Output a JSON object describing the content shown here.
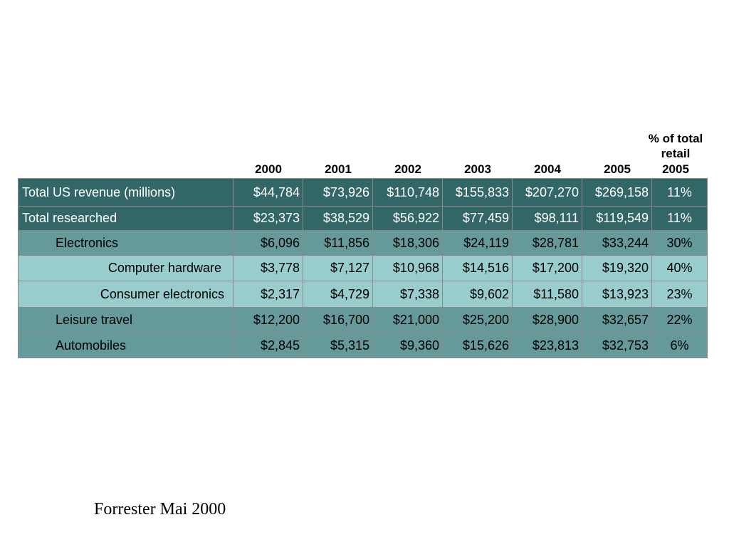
{
  "headers": {
    "years": [
      "2000",
      "2001",
      "2002",
      "2003",
      "2004",
      "2005"
    ],
    "pct_line1": "% of total",
    "pct_line2": "retail",
    "pct_line3": "2005"
  },
  "rows": [
    {
      "label": "Total US revenue (millions)",
      "values": [
        "$44,784",
        "$73,926",
        "$110,748",
        "$155,833",
        "$207,270",
        "$269,158"
      ],
      "pct": "11%"
    },
    {
      "label": "Total researched",
      "values": [
        "$23,373",
        "$38,529",
        "$56,922",
        "$77,459",
        "$98,111",
        "$119,549"
      ],
      "pct": "11%"
    },
    {
      "label": "Electronics",
      "values": [
        "$6,096",
        "$11,856",
        "$18,306",
        "$24,119",
        "$28,781",
        "$33,244"
      ],
      "pct": "30%"
    },
    {
      "label": "Computer hardware",
      "values": [
        "$3,778",
        "$7,127",
        "$10,968",
        "$14,516",
        "$17,200",
        "$19,320"
      ],
      "pct": "40%"
    },
    {
      "label": "Consumer electronics",
      "values": [
        "$2,317",
        "$4,729",
        "$7,338",
        "$9,602",
        "$11,580",
        "$13,923"
      ],
      "pct": "23%"
    },
    {
      "label": "Leisure travel",
      "values": [
        "$12,200",
        "$16,700",
        "$21,000",
        "$25,200",
        "$28,900",
        "$32,657"
      ],
      "pct": "22%"
    },
    {
      "label": "Automobiles",
      "values": [
        "$2,845",
        "$5,315",
        "$9,360",
        "$15,626",
        "$23,813",
        "$32,753"
      ],
      "pct": "6%"
    }
  ],
  "colors": {
    "dark_row": "#336666",
    "mid_row": "#669999",
    "light_row": "#99cccc"
  },
  "source": "Forrester Mai 2000"
}
